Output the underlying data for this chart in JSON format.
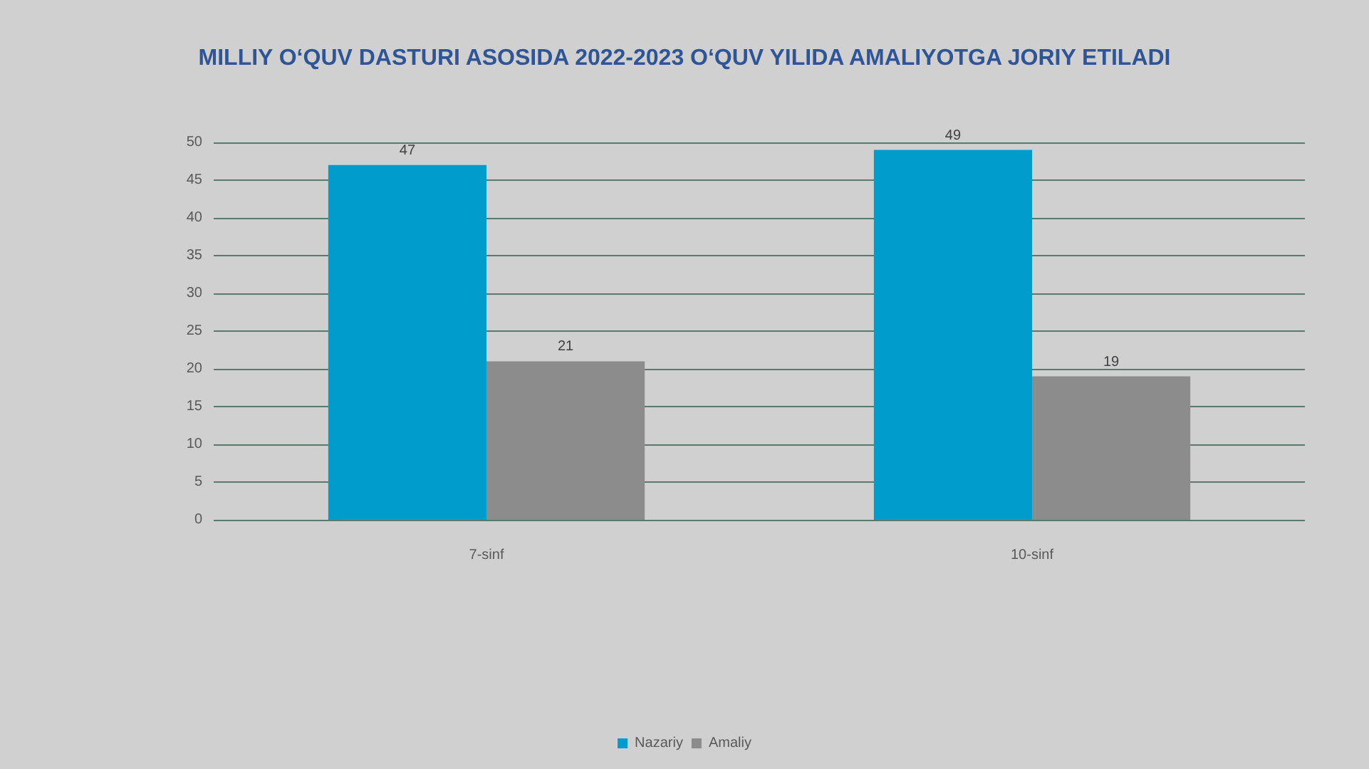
{
  "chart_data": {
    "type": "bar",
    "title": "MILLIY O‘QUV DASTURI ASOSIDA 2022-2023 O‘QUV YILIDA AMALIYOTGA JORIY ETILADI",
    "categories": [
      "7-sinf",
      "10-sinf"
    ],
    "series": [
      {
        "name": "Nazariy",
        "color": "#009ccc",
        "values": [
          47,
          49
        ]
      },
      {
        "name": "Amaliy",
        "color": "#8c8c8c",
        "values": [
          21,
          19
        ]
      }
    ],
    "ylim": [
      0,
      50
    ],
    "yticks": [
      0,
      5,
      10,
      15,
      20,
      25,
      30,
      35,
      40,
      45,
      50
    ],
    "grid": "y",
    "legend": "bottom",
    "data_labels": true
  }
}
